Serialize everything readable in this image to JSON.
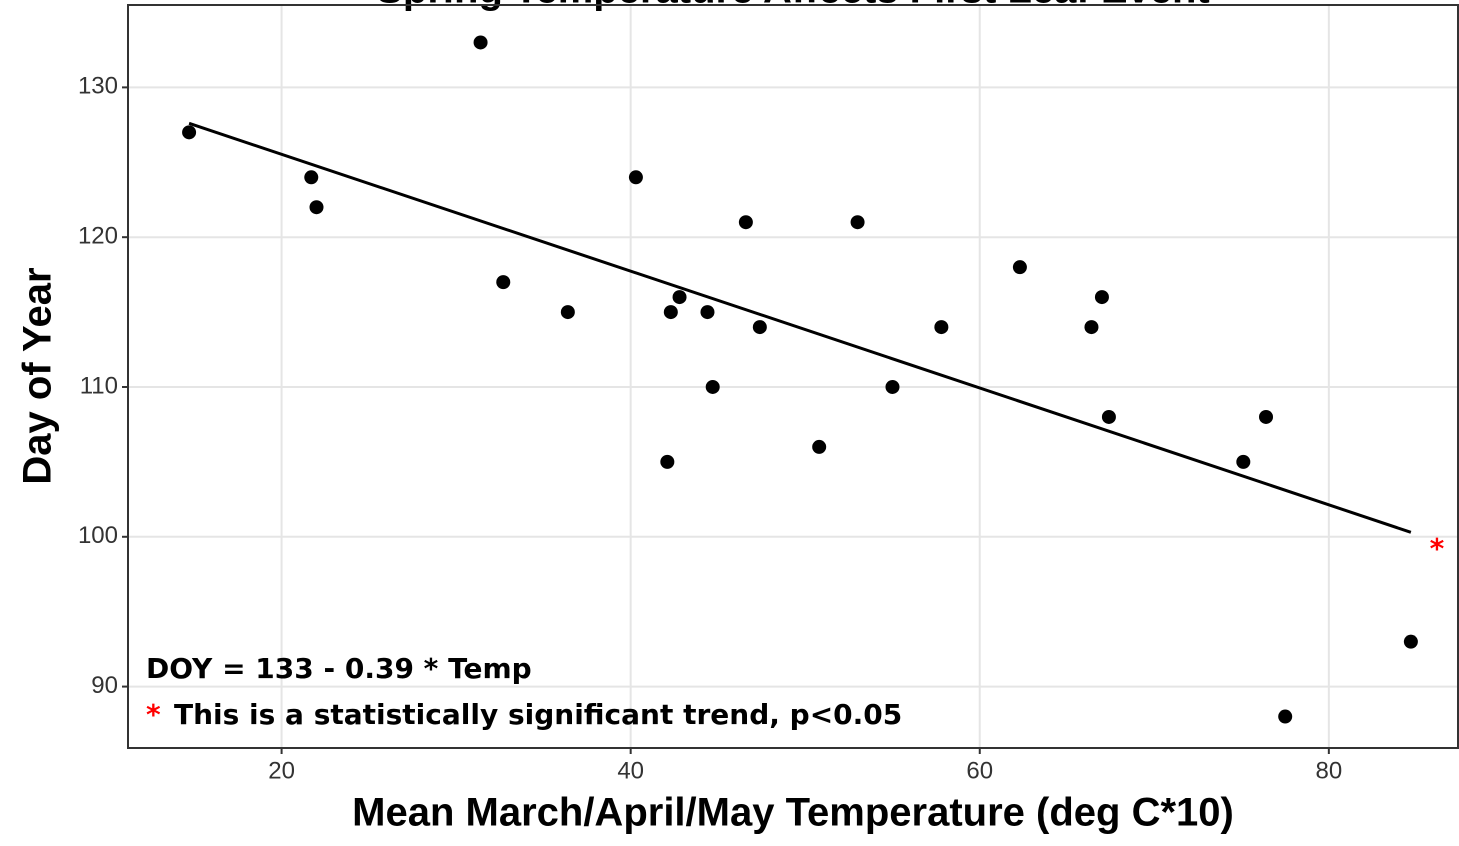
{
  "chart_data": {
    "type": "scatter",
    "title": "Spring Temperature Affects First Leaf Event",
    "x_label": "Mean March/April/May Temperature (deg C*10)",
    "y_label": "Day of Year",
    "series": [
      {
        "name": "Observations",
        "color": "#000000",
        "x": [
          14.7,
          21.7,
          22.0,
          31.4,
          32.7,
          36.4,
          40.3,
          42.1,
          42.3,
          42.8,
          44.4,
          44.7,
          46.6,
          47.4,
          50.8,
          53.0,
          55.0,
          57.8,
          62.3,
          66.4,
          67.0,
          67.4,
          75.1,
          76.4,
          77.5,
          84.7
        ],
        "values": [
          127,
          124,
          122,
          133,
          117,
          115,
          124,
          105,
          115,
          116,
          115,
          110,
          121,
          114,
          106,
          121,
          110,
          114,
          118,
          114,
          116,
          108,
          105,
          108,
          88,
          93
        ]
      }
    ],
    "trend": {
      "color": "#000000",
      "x": [
        14.7,
        84.7
      ],
      "values": [
        127.6,
        100.3
      ]
    },
    "annotations": [
      "DOY = 133 - 0.39 * Temp",
      "*",
      "This is a statistically significant trend, p<0.05",
      "*"
    ],
    "annotation_colors": [
      "#000000",
      "#ff0000",
      "#000000",
      "#ff0000"
    ],
    "xlim": [
      11.2,
      87.4
    ],
    "ylim": [
      85.9,
      135.5
    ],
    "xticks": [
      20,
      40,
      60,
      80
    ],
    "yticks": [
      90,
      100,
      110,
      120,
      130
    ],
    "grid": true
  }
}
